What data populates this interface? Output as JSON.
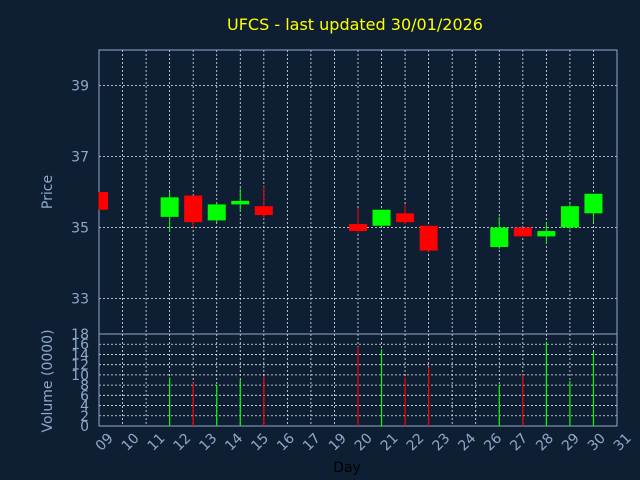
{
  "title": "UFCS - last updated 30/01/2026",
  "colors": {
    "background": "#0f1f33",
    "up": "#00ff00",
    "down": "#ff0000",
    "grid": "#ffffff",
    "frame": "#8fa8c8",
    "title": "#ffff00"
  },
  "chart_data": [
    {
      "type": "candlestick",
      "title": "UFCS - last updated 30/01/2026",
      "ylabel": "Price",
      "ylim": [
        32,
        40
      ],
      "yticks": [
        "33",
        "35",
        "37",
        "39"
      ],
      "grid": true,
      "candles": [
        {
          "day": 9,
          "open": 36.0,
          "close": 35.5,
          "high": 36.0,
          "low": 35.5
        },
        {
          "day": 12,
          "open": 35.3,
          "close": 35.85,
          "high": 36.0,
          "low": 34.9
        },
        {
          "day": 13,
          "open": 35.9,
          "close": 35.15,
          "high": 35.9,
          "low": 35.0
        },
        {
          "day": 14,
          "open": 35.2,
          "close": 35.65,
          "high": 35.7,
          "low": 35.15
        },
        {
          "day": 15,
          "open": 35.65,
          "close": 35.75,
          "high": 36.1,
          "low": 35.45
        },
        {
          "day": 16,
          "open": 35.6,
          "close": 35.35,
          "high": 36.15,
          "low": 35.25
        },
        {
          "day": 20,
          "open": 35.1,
          "close": 34.9,
          "high": 35.55,
          "low": 34.85
        },
        {
          "day": 21,
          "open": 35.05,
          "close": 35.5,
          "high": 35.5,
          "low": 35.0
        },
        {
          "day": 22,
          "open": 35.4,
          "close": 35.15,
          "high": 35.65,
          "low": 35.1
        },
        {
          "day": 23,
          "open": 35.05,
          "close": 34.35,
          "high": 35.05,
          "low": 34.3
        },
        {
          "day": 26,
          "open": 34.45,
          "close": 35.0,
          "high": 35.3,
          "low": 34.4
        },
        {
          "day": 27,
          "open": 35.0,
          "close": 34.75,
          "high": 35.0,
          "low": 34.75
        },
        {
          "day": 28,
          "open": 34.75,
          "close": 34.9,
          "high": 35.15,
          "low": 34.55
        },
        {
          "day": 29,
          "open": 35.0,
          "close": 35.6,
          "high": 35.65,
          "low": 34.95
        },
        {
          "day": 30,
          "open": 35.4,
          "close": 35.95,
          "high": 35.95,
          "low": 35.15
        }
      ]
    },
    {
      "type": "bar",
      "ylabel": "Volume (0000)",
      "xlabel": "Day",
      "ylim": [
        0,
        18
      ],
      "yticks": [
        "0",
        "2",
        "4",
        "6",
        "8",
        "10",
        "12",
        "14",
        "16",
        "18"
      ],
      "xticks": [
        "09",
        "10",
        "11",
        "12",
        "13",
        "14",
        "15",
        "16",
        "17",
        "19",
        "20",
        "21",
        "22",
        "23",
        "24",
        "26",
        "27",
        "28",
        "29",
        "30",
        "31"
      ],
      "volumes": [
        {
          "day": 12,
          "value": 9.5,
          "dir": "up"
        },
        {
          "day": 13,
          "value": 8.5,
          "dir": "down"
        },
        {
          "day": 14,
          "value": 8.0,
          "dir": "up"
        },
        {
          "day": 15,
          "value": 9.0,
          "dir": "up"
        },
        {
          "day": 16,
          "value": 9.7,
          "dir": "down"
        },
        {
          "day": 20,
          "value": 15.5,
          "dir": "down"
        },
        {
          "day": 21,
          "value": 15.0,
          "dir": "up"
        },
        {
          "day": 22,
          "value": 9.5,
          "dir": "down"
        },
        {
          "day": 23,
          "value": 11.5,
          "dir": "down"
        },
        {
          "day": 26,
          "value": 8.0,
          "dir": "up"
        },
        {
          "day": 27,
          "value": 10.0,
          "dir": "down"
        },
        {
          "day": 28,
          "value": 16.5,
          "dir": "up"
        },
        {
          "day": 29,
          "value": 8.8,
          "dir": "up"
        },
        {
          "day": 30,
          "value": 14.5,
          "dir": "up"
        }
      ]
    }
  ]
}
